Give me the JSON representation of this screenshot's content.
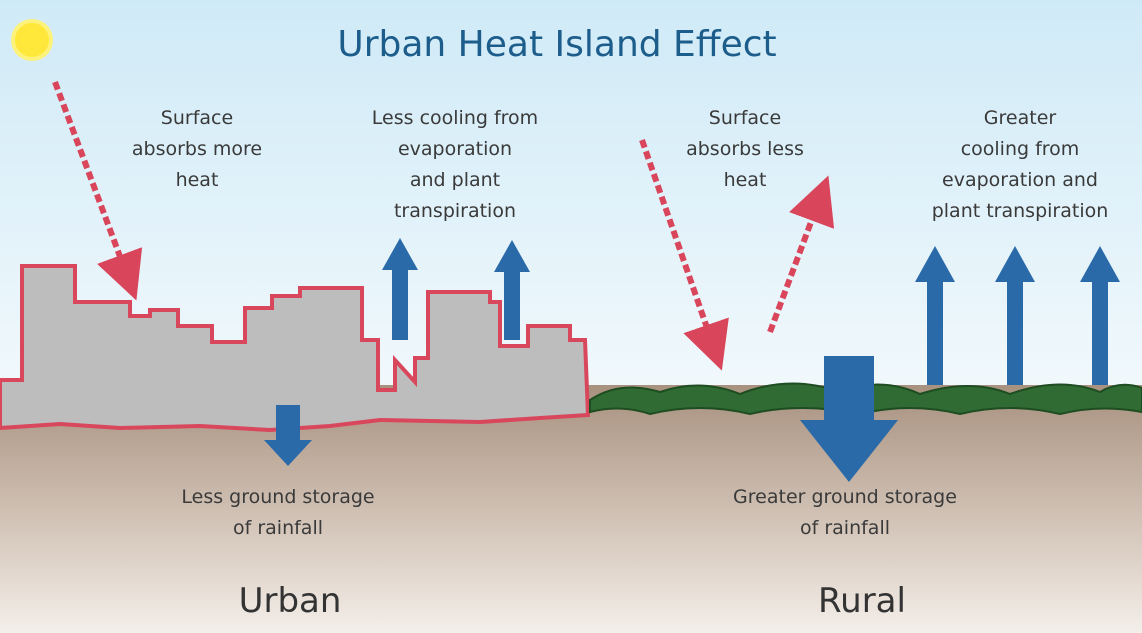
{
  "title": "Urban Heat Island Effect",
  "annotations": [
    {
      "lines": [
        "Surface",
        "absorbs more",
        "heat"
      ]
    },
    {
      "lines": [
        "Less cooling from",
        "evaporation",
        "and plant",
        "transpiration"
      ]
    },
    {
      "lines": [
        "Surface",
        "absorbs less",
        "heat"
      ]
    },
    {
      "lines": [
        "Greater",
        "cooling from",
        "evaporation and",
        "plant transpiration"
      ]
    },
    {
      "lines": [
        "Less ground storage",
        "of rainfall"
      ]
    },
    {
      "lines": [
        "Greater ground storage",
        "of rainfall"
      ]
    }
  ],
  "regions": [
    "Urban",
    "Rural"
  ]
}
